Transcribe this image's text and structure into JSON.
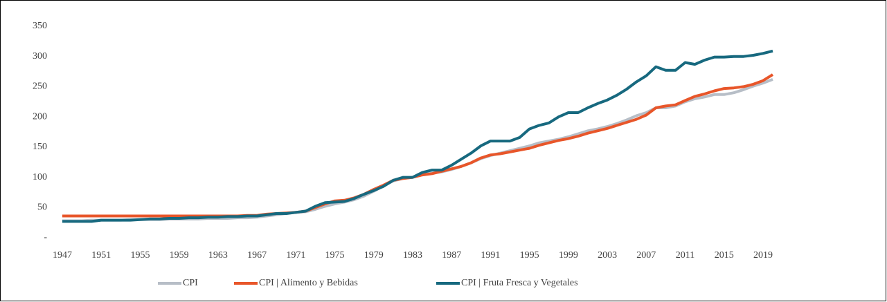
{
  "chart_data": {
    "type": "line",
    "x": [
      1947,
      1948,
      1949,
      1950,
      1951,
      1952,
      1953,
      1954,
      1955,
      1956,
      1957,
      1958,
      1959,
      1960,
      1961,
      1962,
      1963,
      1964,
      1965,
      1966,
      1967,
      1968,
      1969,
      1970,
      1971,
      1972,
      1973,
      1974,
      1975,
      1976,
      1977,
      1978,
      1979,
      1980,
      1981,
      1982,
      1983,
      1984,
      1985,
      1986,
      1987,
      1988,
      1989,
      1990,
      1991,
      1992,
      1993,
      1994,
      1995,
      1996,
      1997,
      1998,
      1999,
      2000,
      2001,
      2002,
      2003,
      2004,
      2005,
      2006,
      2007,
      2008,
      2009,
      2010,
      2011,
      2012,
      2013,
      2014,
      2015,
      2016,
      2017,
      2018,
      2019,
      2020
    ],
    "series": [
      {
        "name": "CPI",
        "color": "#b7bec7",
        "values": [
          28,
          28,
          28,
          29,
          29,
          29,
          29,
          30,
          30,
          30,
          30,
          31,
          31,
          31,
          31,
          32,
          32,
          32,
          33,
          33,
          34,
          36,
          38,
          40,
          42,
          43,
          47,
          52,
          56,
          59,
          63,
          69,
          77,
          86,
          94,
          98,
          100,
          104,
          107,
          109,
          113,
          118,
          124,
          131,
          136,
          140,
          144,
          148,
          152,
          157,
          160,
          163,
          167,
          172,
          177,
          180,
          184,
          189,
          195,
          202,
          207,
          215,
          215,
          218,
          225,
          230,
          233,
          237,
          237,
          240,
          245,
          251,
          256,
          262
        ]
      },
      {
        "name": "CPI | Alimento y Bebidas",
        "color": "#e8562a",
        "values": [
          36,
          36,
          36,
          36,
          36,
          36,
          36,
          36,
          36,
          36,
          36,
          36,
          36,
          36,
          36,
          36,
          36,
          36,
          36,
          37,
          37,
          39,
          40,
          41,
          42,
          44,
          50,
          56,
          61,
          62,
          66,
          72,
          80,
          87,
          95,
          98,
          100,
          104,
          106,
          110,
          114,
          118,
          124,
          132,
          137,
          139,
          142,
          145,
          148,
          153,
          157,
          161,
          164,
          168,
          173,
          177,
          181,
          186,
          191,
          196,
          203,
          215,
          218,
          220,
          227,
          234,
          238,
          243,
          247,
          248,
          250,
          254,
          260,
          270
        ]
      },
      {
        "name": "CPI | Fruta Fresca y Vegetales",
        "color": "#17697f",
        "values": [
          27,
          27,
          27,
          27,
          29,
          29,
          29,
          29,
          30,
          31,
          31,
          32,
          32,
          33,
          33,
          34,
          34,
          35,
          35,
          36,
          36,
          38,
          40,
          40,
          42,
          44,
          52,
          58,
          59,
          60,
          65,
          72,
          78,
          85,
          95,
          100,
          100,
          108,
          112,
          112,
          120,
          130,
          140,
          152,
          160,
          160,
          160,
          166,
          180,
          186,
          190,
          200,
          207,
          207,
          215,
          222,
          228,
          236,
          246,
          258,
          268,
          283,
          277,
          277,
          290,
          287,
          294,
          299,
          299,
          300,
          300,
          302,
          305,
          309
        ]
      }
    ],
    "xlim": [
      1947,
      2020
    ],
    "xticks": [
      1947,
      1951,
      1955,
      1959,
      1963,
      1967,
      1971,
      1975,
      1979,
      1983,
      1987,
      1991,
      1995,
      1999,
      2003,
      2007,
      2011,
      2015,
      2019
    ],
    "ylim": [
      0,
      350
    ],
    "yticks": [
      {
        "value": 0,
        "label": "-"
      },
      50,
      100,
      150,
      200,
      250,
      300,
      350
    ],
    "grid": false
  }
}
